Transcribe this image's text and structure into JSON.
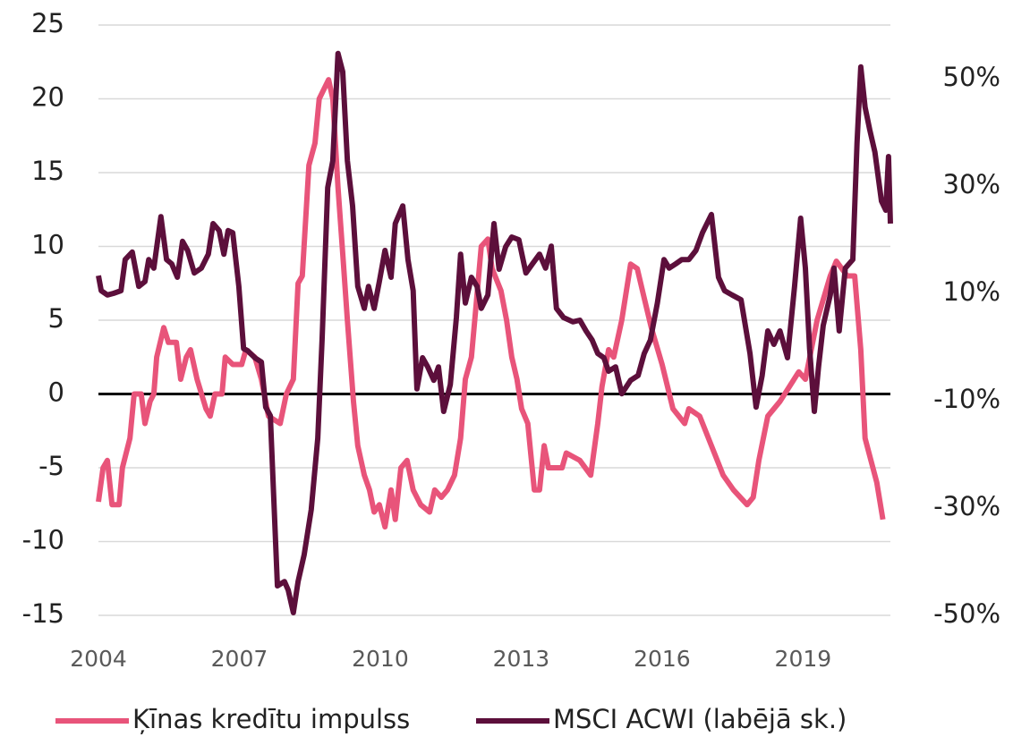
{
  "chart_data": {
    "type": "line",
    "xlim": [
      2004,
      2020.86
    ],
    "xticks": [
      2004,
      2007,
      2010,
      2013,
      2016,
      2019
    ],
    "ylim": [
      -15,
      25
    ],
    "yticks": [
      -15,
      -10,
      -5,
      0,
      5,
      10,
      15,
      20,
      25
    ],
    "y2lim": [
      -50,
      60
    ],
    "y2ticks": [
      {
        "value": -50,
        "label": "-50%"
      },
      {
        "value": -30,
        "label": "-30%"
      },
      {
        "value": -10,
        "label": "-10%"
      },
      {
        "value": 10,
        "label": "10%"
      },
      {
        "value": 30,
        "label": "30%"
      },
      {
        "value": 50,
        "label": "50%"
      }
    ],
    "grid": true,
    "legend": "bottom",
    "series": [
      {
        "name": "Ķīnas kredītu impulss",
        "color": "#e8547a",
        "x": [
          2004.0,
          2004.1,
          2004.19,
          2004.29,
          2004.44,
          2004.51,
          2004.67,
          2004.76,
          2004.91,
          2004.99,
          2005.1,
          2005.18,
          2005.24,
          2005.39,
          2005.49,
          2005.66,
          2005.75,
          2005.87,
          2005.96,
          2006.1,
          2006.29,
          2006.38,
          2006.48,
          2006.63,
          2006.7,
          2006.86,
          2007.05,
          2007.14,
          2007.33,
          2007.47,
          2007.62,
          2007.87,
          2008.0,
          2008.15,
          2008.25,
          2008.34,
          2008.48,
          2008.61,
          2008.7,
          2008.9,
          2008.99,
          2009.1,
          2009.2,
          2009.3,
          2009.43,
          2009.52,
          2009.66,
          2009.77,
          2009.87,
          2009.98,
          2010.1,
          2010.23,
          2010.32,
          2010.44,
          2010.57,
          2010.7,
          2010.86,
          2011.05,
          2011.16,
          2011.3,
          2011.43,
          2011.58,
          2011.71,
          2011.81,
          2011.94,
          2012.04,
          2012.15,
          2012.29,
          2012.38,
          2012.57,
          2012.69,
          2012.8,
          2012.91,
          2013.01,
          2013.14,
          2013.28,
          2013.39,
          2013.49,
          2013.58,
          2013.87,
          2013.96,
          2014.25,
          2014.48,
          2014.63,
          2014.72,
          2014.86,
          2014.97,
          2015.14,
          2015.24,
          2015.33,
          2015.47,
          2015.62,
          2015.77,
          2016.0,
          2016.23,
          2016.48,
          2016.57,
          2016.8,
          2017.05,
          2017.3,
          2017.52,
          2017.81,
          2017.94,
          2018.06,
          2018.25,
          2018.51,
          2018.91,
          2019.05,
          2019.3,
          2019.58,
          2019.71,
          2019.94,
          2020.1,
          2020.23,
          2020.32,
          2020.57,
          2020.7
        ],
        "values": [
          -7.3,
          -5,
          -4.5,
          -7.5,
          -7.5,
          -5,
          -3,
          0,
          0,
          -2,
          -0.5,
          0,
          2.5,
          4.5,
          3.5,
          3.5,
          1,
          2.5,
          3,
          1,
          -1,
          -1.5,
          0,
          0,
          2.5,
          2,
          2,
          3,
          2.5,
          1,
          -1.5,
          -2,
          0,
          1,
          7.5,
          8,
          15.5,
          17,
          20,
          21.3,
          20,
          14,
          9.5,
          5,
          -0.5,
          -3.5,
          -5.5,
          -6.5,
          -8,
          -7.5,
          -9,
          -6.5,
          -8.5,
          -5,
          -4.5,
          -6.5,
          -7.5,
          -8,
          -6.5,
          -7,
          -6.5,
          -5.5,
          -3,
          1,
          2.5,
          6,
          10,
          10.5,
          8.5,
          7,
          5,
          2.5,
          1,
          -1,
          -2,
          -6.5,
          -6.5,
          -3.5,
          -5,
          -5,
          -4,
          -4.5,
          -5.5,
          -2,
          0.5,
          3,
          2.5,
          5,
          7,
          8.8,
          8.5,
          6.5,
          4.5,
          2,
          -1,
          -2,
          -1,
          -1.5,
          -3.5,
          -5.5,
          -6.5,
          -7.5,
          -7,
          -4.5,
          -1.5,
          -0.5,
          1.5,
          1,
          5,
          8,
          9,
          8,
          8,
          3,
          -3,
          -6,
          -8.5
        ]
      },
      {
        "name": "MSCI ACWI (labējā sk.)",
        "color": "#5c0f3b",
        "axis": "y2",
        "x": [
          2004.0,
          2004.06,
          2004.19,
          2004.32,
          2004.48,
          2004.57,
          2004.72,
          2004.86,
          2004.99,
          2005.07,
          2005.18,
          2005.33,
          2005.45,
          2005.56,
          2005.68,
          2005.79,
          2005.9,
          2006.04,
          2006.19,
          2006.34,
          2006.44,
          2006.57,
          2006.67,
          2006.76,
          2006.86,
          2006.99,
          2007.09,
          2007.18,
          2007.33,
          2007.47,
          2007.56,
          2007.66,
          2007.81,
          2007.96,
          2008.04,
          2008.15,
          2008.25,
          2008.38,
          2008.53,
          2008.67,
          2008.76,
          2008.88,
          2008.99,
          2009.1,
          2009.2,
          2009.3,
          2009.41,
          2009.52,
          2009.66,
          2009.75,
          2009.87,
          2009.98,
          2010.1,
          2010.23,
          2010.32,
          2010.48,
          2010.59,
          2010.7,
          2010.78,
          2010.9,
          2011.01,
          2011.14,
          2011.24,
          2011.35,
          2011.49,
          2011.62,
          2011.71,
          2011.81,
          2011.94,
          2012.06,
          2012.15,
          2012.29,
          2012.42,
          2012.53,
          2012.67,
          2012.8,
          2012.95,
          2013.1,
          2013.24,
          2013.39,
          2013.52,
          2013.64,
          2013.75,
          2013.9,
          2014.1,
          2014.25,
          2014.38,
          2014.51,
          2014.63,
          2014.76,
          2014.86,
          2015.01,
          2015.14,
          2015.33,
          2015.49,
          2015.62,
          2015.75,
          2015.9,
          2016.04,
          2016.15,
          2016.29,
          2016.42,
          2016.57,
          2016.72,
          2016.86,
          2017.05,
          2017.2,
          2017.33,
          2017.49,
          2017.68,
          2017.87,
          2018.0,
          2018.13,
          2018.25,
          2018.38,
          2018.51,
          2018.67,
          2018.82,
          2018.95,
          2019.05,
          2019.14,
          2019.24,
          2019.33,
          2019.43,
          2019.58,
          2019.66,
          2019.77,
          2019.9,
          2020.06,
          2020.15,
          2020.23,
          2020.32,
          2020.42,
          2020.53,
          2020.67,
          2020.76,
          2020.82,
          2020.86
        ],
        "values": [
          13.3,
          10.5,
          9.7,
          10,
          10.5,
          16.3,
          17.7,
          11.3,
          12.2,
          16.3,
          14.7,
          24.3,
          16.3,
          15.5,
          13,
          19.7,
          18,
          13.8,
          14.7,
          17.3,
          23,
          21.7,
          17.3,
          21.7,
          21.3,
          11.3,
          -0.3,
          -0.7,
          -2,
          -2.8,
          -11.2,
          -12.8,
          -44.5,
          -43.7,
          -45.3,
          -49.5,
          -43.7,
          -38.7,
          -30.3,
          -17,
          1.3,
          29.7,
          34.7,
          54.7,
          51.3,
          34.7,
          26.3,
          11.3,
          7.2,
          11.3,
          7.2,
          12.2,
          18,
          13,
          23,
          26.3,
          16.3,
          10.5,
          -7.8,
          -2,
          -3.7,
          -6.2,
          -3.7,
          -12,
          -7,
          5.5,
          17.3,
          8.2,
          13,
          11.3,
          7.2,
          9.7,
          23,
          14.5,
          18.7,
          20.5,
          20,
          13.8,
          15.5,
          17.3,
          14.7,
          18.8,
          7.2,
          5.5,
          4.7,
          5,
          3,
          1.3,
          -1.2,
          -2,
          -4.5,
          -3.7,
          -8.7,
          -6.2,
          -5.3,
          -1.2,
          1.3,
          8.2,
          16.3,
          14.7,
          15.5,
          16.3,
          16.3,
          18,
          21.3,
          24.7,
          13,
          10.5,
          9.7,
          8.8,
          -1.2,
          -11.2,
          -5.3,
          3,
          0.5,
          3,
          -2,
          11.3,
          24,
          14.7,
          -0.3,
          -12,
          -3.7,
          4,
          9.7,
          14.7,
          3,
          14.7,
          16.3,
          38,
          52.2,
          44.7,
          40.5,
          36.3,
          27.2,
          25.5,
          35.5,
          23
        ]
      }
    ]
  }
}
